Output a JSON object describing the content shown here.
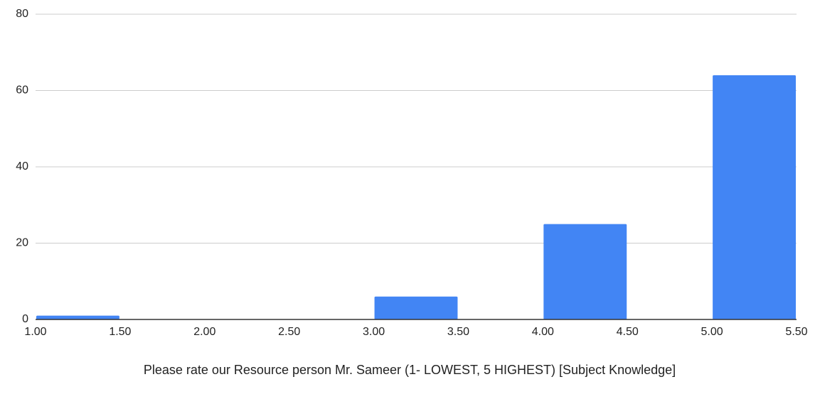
{
  "chart_data": {
    "type": "bar",
    "xlabel": "Please rate our Resource person Mr. Sameer  (1- LOWEST, 5 HIGHEST) [Subject Knowledge]",
    "ylabel": "",
    "xlim": [
      1.0,
      5.5
    ],
    "ylim": [
      0,
      80
    ],
    "xticks": [
      "1.00",
      "1.50",
      "2.00",
      "2.50",
      "3.00",
      "3.50",
      "4.00",
      "4.50",
      "5.00",
      "5.50"
    ],
    "yticks": [
      "0",
      "20",
      "40",
      "60",
      "80"
    ],
    "bins": [
      {
        "x0": 1.0,
        "x1": 1.5,
        "value": 1
      },
      {
        "x0": 3.0,
        "x1": 3.5,
        "value": 6
      },
      {
        "x0": 4.0,
        "x1": 4.5,
        "value": 25
      },
      {
        "x0": 5.0,
        "x1": 5.5,
        "value": 64
      }
    ],
    "bar_color": "#4285f4",
    "grid": true,
    "legend": "none"
  }
}
